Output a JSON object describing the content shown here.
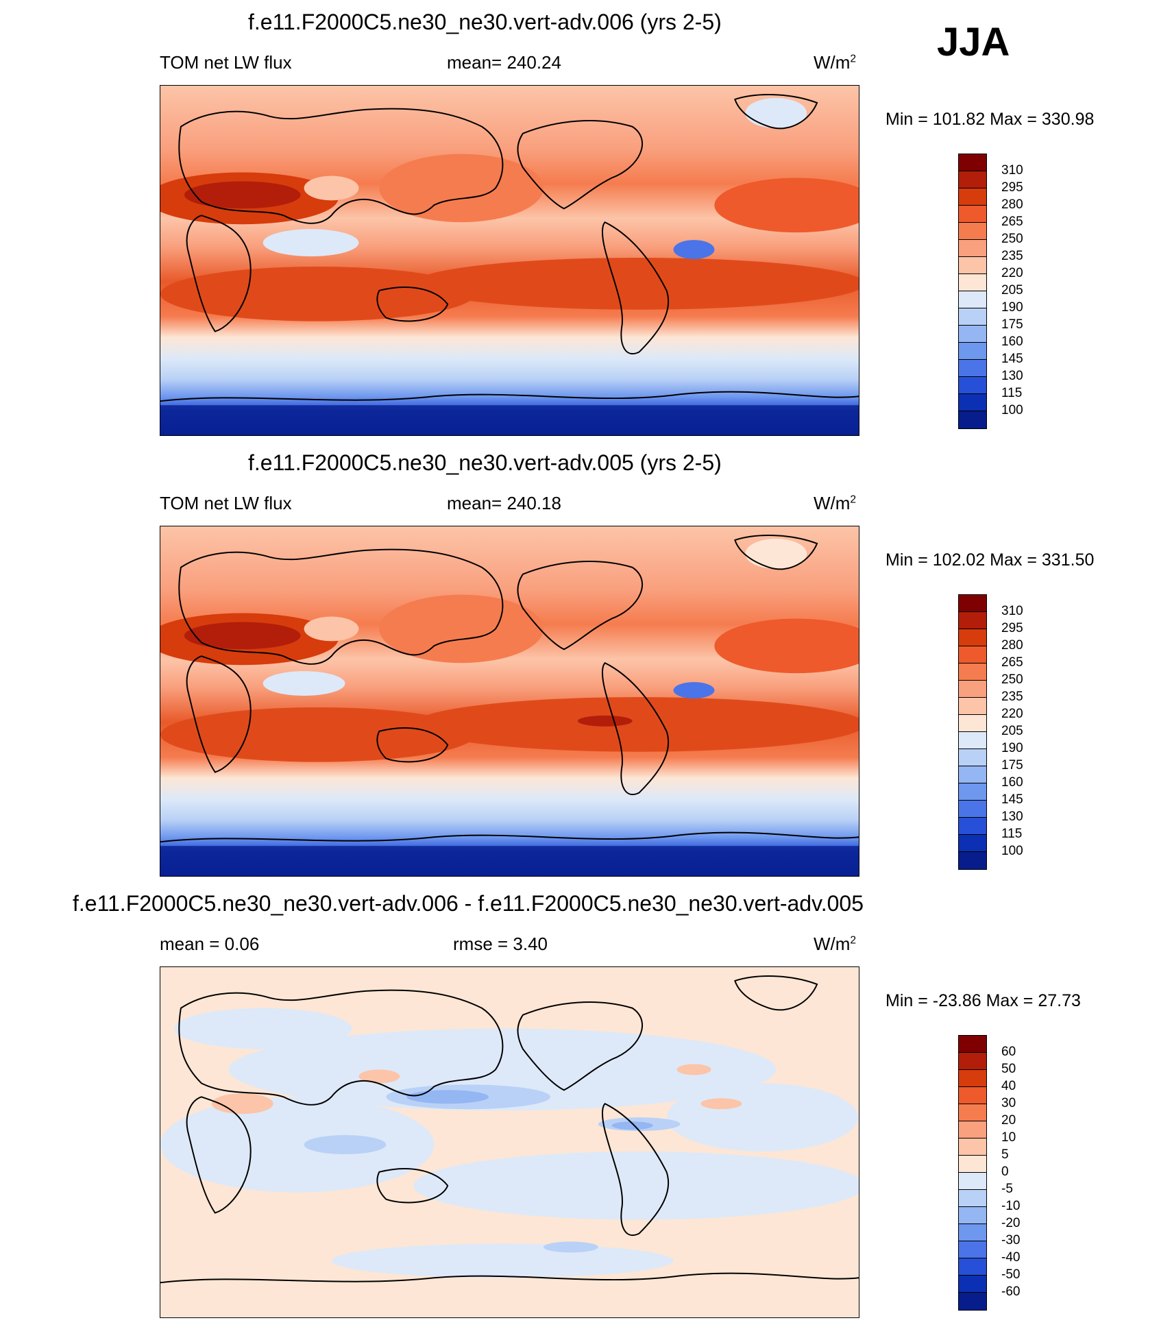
{
  "season": "JJA",
  "panels": [
    {
      "title": "f.e11.F2000C5.ne30_ne30.vert-adv.006 (yrs 2-5)",
      "left_label": "TOM net LW flux",
      "center_label": "mean= 240.24",
      "units_base": "W/m",
      "units_exp": "2",
      "minmax": "Min = 101.82 Max = 330.98",
      "colorbar_labels": [
        "310",
        "295",
        "280",
        "265",
        "250",
        "235",
        "220",
        "205",
        "190",
        "175",
        "160",
        "145",
        "130",
        "115",
        "100"
      ]
    },
    {
      "title": "f.e11.F2000C5.ne30_ne30.vert-adv.005 (yrs 2-5)",
      "left_label": "TOM net LW flux",
      "center_label": "mean= 240.18",
      "units_base": "W/m",
      "units_exp": "2",
      "minmax": "Min = 102.02 Max = 331.50",
      "colorbar_labels": [
        "310",
        "295",
        "280",
        "265",
        "250",
        "235",
        "220",
        "205",
        "190",
        "175",
        "160",
        "145",
        "130",
        "115",
        "100"
      ]
    },
    {
      "title": "f.e11.F2000C5.ne30_ne30.vert-adv.006 - f.e11.F2000C5.ne30_ne30.vert-adv.005",
      "left_label": "mean =   0.06",
      "center_label": "rmse =   3.40",
      "units_base": "W/m",
      "units_exp": "2",
      "minmax": "Min = -23.86 Max =  27.73",
      "colorbar_labels": [
        "60",
        "50",
        "40",
        "30",
        "20",
        "10",
        "5",
        "0",
        "-5",
        "-10",
        "-20",
        "-30",
        "-40",
        "-50",
        "-60"
      ]
    }
  ],
  "colors": {
    "scale_top_to_bottom": [
      "#7f0000",
      "#b21e0a",
      "#d73c0c",
      "#ee5a2b",
      "#f57c4f",
      "#f9a07e",
      "#fcc4a8",
      "#fde6d5",
      "#dde9f8",
      "#b9d1f6",
      "#94b6f3",
      "#6e97ee",
      "#4a74e8",
      "#2650d7",
      "#0c30b4",
      "#061d8b"
    ]
  }
}
